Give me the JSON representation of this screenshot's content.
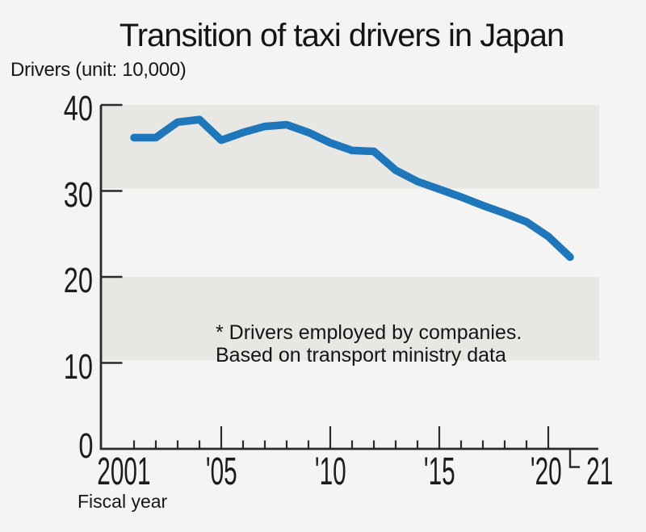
{
  "header": {
    "title": "Transition of taxi drivers in Japan",
    "y_axis_unit": "Drivers (unit: 10,000)"
  },
  "footer": {
    "x_axis_label": "Fiscal year"
  },
  "annotation": {
    "line1": "* Drivers employed by companies.",
    "line2": "Based on transport ministry data"
  },
  "chart_data": {
    "type": "line",
    "title": "Transition of taxi drivers in Japan",
    "ylabel": "Drivers (unit: 10,000)",
    "xlabel": "Fiscal year",
    "x": [
      2001,
      2002,
      2003,
      2004,
      2005,
      2006,
      2007,
      2008,
      2009,
      2010,
      2011,
      2012,
      2013,
      2014,
      2015,
      2016,
      2017,
      2018,
      2019,
      2020,
      2021
    ],
    "values": [
      36.2,
      36.2,
      38.0,
      38.3,
      35.9,
      36.8,
      37.5,
      37.7,
      36.8,
      35.6,
      34.7,
      34.6,
      32.4,
      31.1,
      30.2,
      29.3,
      28.3,
      27.4,
      26.4,
      24.7,
      22.3
    ],
    "unit": "10,000 drivers",
    "ylim": [
      0,
      40
    ],
    "xlim": [
      2001,
      2021
    ],
    "y_tick_values": [
      40,
      30,
      20,
      10,
      0
    ],
    "y_tick_labels": [
      "40",
      "30",
      "20",
      "10",
      "0"
    ],
    "x_tick_labels": [
      {
        "year": 2001,
        "label": "2001"
      },
      {
        "year": 2005,
        "label": "'05"
      },
      {
        "year": 2010,
        "label": "'10"
      },
      {
        "year": 2015,
        "label": "'15"
      },
      {
        "year": 2020,
        "label": "'20"
      },
      {
        "year": 2021,
        "label": "21"
      }
    ],
    "bands": [
      [
        30,
        40
      ],
      [
        10,
        20
      ]
    ],
    "grid": false,
    "legend": "none",
    "annotation": "* Drivers employed by companies. Based on transport ministry data",
    "colors": {
      "line": "#1e76bb",
      "band": "#e7e7e4",
      "background": "#f4f4f2",
      "axis": "#2a2a2a",
      "text": "#111111"
    }
  }
}
